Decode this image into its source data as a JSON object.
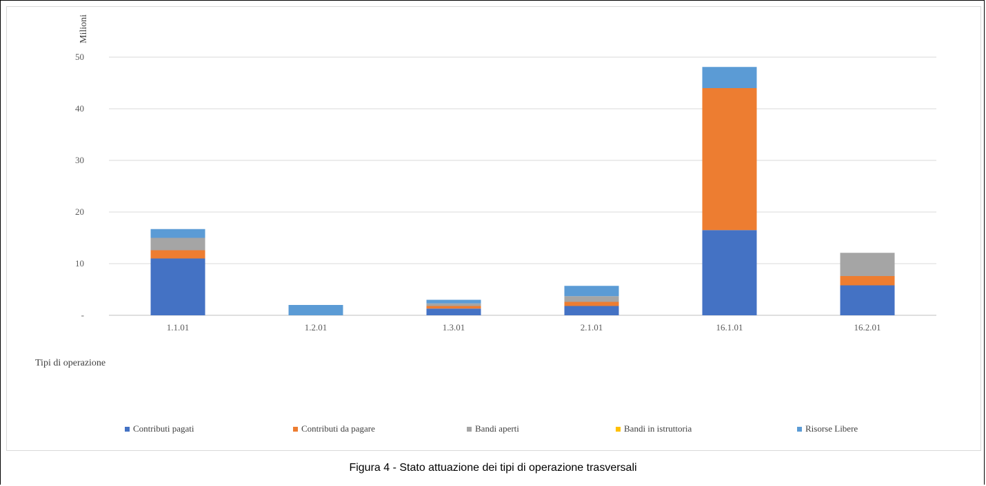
{
  "chart_data": {
    "type": "bar",
    "stacked": true,
    "categories": [
      "1.1.01",
      "1.2.01",
      "1.3.01",
      "2.1.01",
      "16.1.01",
      "16.2.01"
    ],
    "series": [
      {
        "name": "Contributi pagati",
        "color": "#4472c4",
        "values": [
          11,
          0,
          1.3,
          1.8,
          16.5,
          5.8
        ]
      },
      {
        "name": "Contributi  da pagare",
        "color": "#ed7d31",
        "values": [
          1.6,
          0,
          0.5,
          0.8,
          27.5,
          1.8
        ]
      },
      {
        "name": "Bandi aperti",
        "color": "#a5a5a5",
        "values": [
          2.4,
          0,
          0.5,
          1.1,
          0,
          4.5
        ]
      },
      {
        "name": "Bandi in istruttoria",
        "color": "#ffc000",
        "values": [
          0,
          0,
          0,
          0,
          0,
          0
        ]
      },
      {
        "name": "Risorse Libere",
        "color": "#5b9bd5",
        "values": [
          1.7,
          2.0,
          0.7,
          2.0,
          4.1,
          0
        ]
      }
    ],
    "ylabel": "Milioni",
    "xlabel": "Tipi di operazione",
    "ylim": [
      0,
      55
    ],
    "yticks": [
      0,
      10,
      20,
      30,
      40,
      50
    ],
    "ytick_labels": [
      "-",
      "10",
      "20",
      "30",
      "40",
      "50"
    ],
    "grid": true,
    "legend_position": "bottom"
  },
  "caption": "Figura 4 - Stato attuazione dei tipi di operazione trasversali"
}
